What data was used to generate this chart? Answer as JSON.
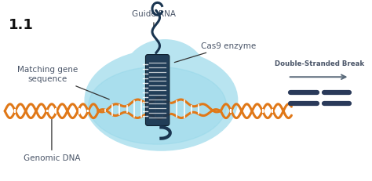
{
  "title_text": "1.1",
  "bg_color": "#ffffff",
  "label_color": "#4a5568",
  "label_fontsize": 7.0,
  "dna_color": "#e07818",
  "cas9_color": "#1a3550",
  "blob_color_light": "#b8e4f0",
  "blob_color_mid": "#8dd4e8",
  "arrow_color": "#5a6a7a",
  "break_line_color": "#2a3a5a",
  "labels": {
    "guide_rna": "Guide RNA",
    "cas9": "Cas9 enzyme",
    "matching": "Matching gene\nsequence",
    "genomic": "Genomic DNA",
    "break": "Double-Stranded Break"
  }
}
